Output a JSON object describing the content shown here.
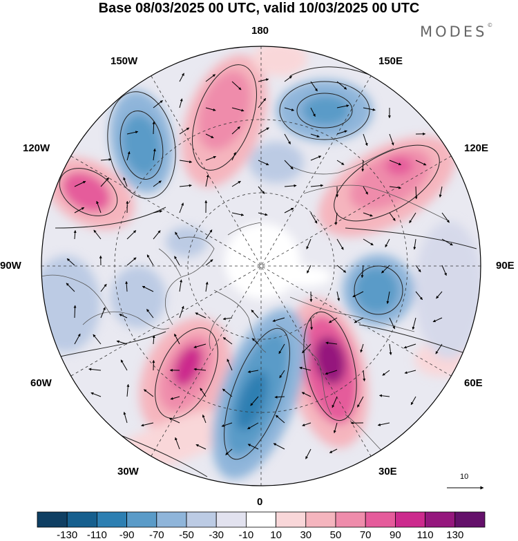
{
  "title": "Base 08/03/2025 00 UTC, valid 10/03/2025 00 UTC",
  "brand": "MODES",
  "brand_mark": "©",
  "longitude_labels": {
    "lon_180": "180",
    "lon_150w": "150W",
    "lon_150e": "150E",
    "lon_120w": "120W",
    "lon_120e": "120E",
    "lon_90w": "90W",
    "lon_90e": "90E",
    "lon_60w": "60W",
    "lon_60e": "60E",
    "lon_30w": "30W",
    "lon_30e": "30E",
    "lon_0": "0"
  },
  "vector_scale_label": "10",
  "colorbar": {
    "ticks": [
      "-130",
      "-110",
      "-90",
      "-70",
      "-50",
      "-30",
      "-10",
      "10",
      "30",
      "50",
      "70",
      "90",
      "110",
      "130"
    ],
    "colors": [
      "#0f3f63",
      "#165f8e",
      "#2d7fb2",
      "#5a9bc8",
      "#8fb5da",
      "#bccbe4",
      "#e2e2ef",
      "#ffffff",
      "#f9d7d9",
      "#f5b5be",
      "#ef8cab",
      "#e55b9b",
      "#cc2a8d",
      "#95177d",
      "#64106a"
    ]
  },
  "anomaly_centers": [
    {
      "sign": "positive",
      "color": "#d9499a"
    },
    {
      "sign": "negative",
      "color": "#2d7fb2"
    }
  ]
}
